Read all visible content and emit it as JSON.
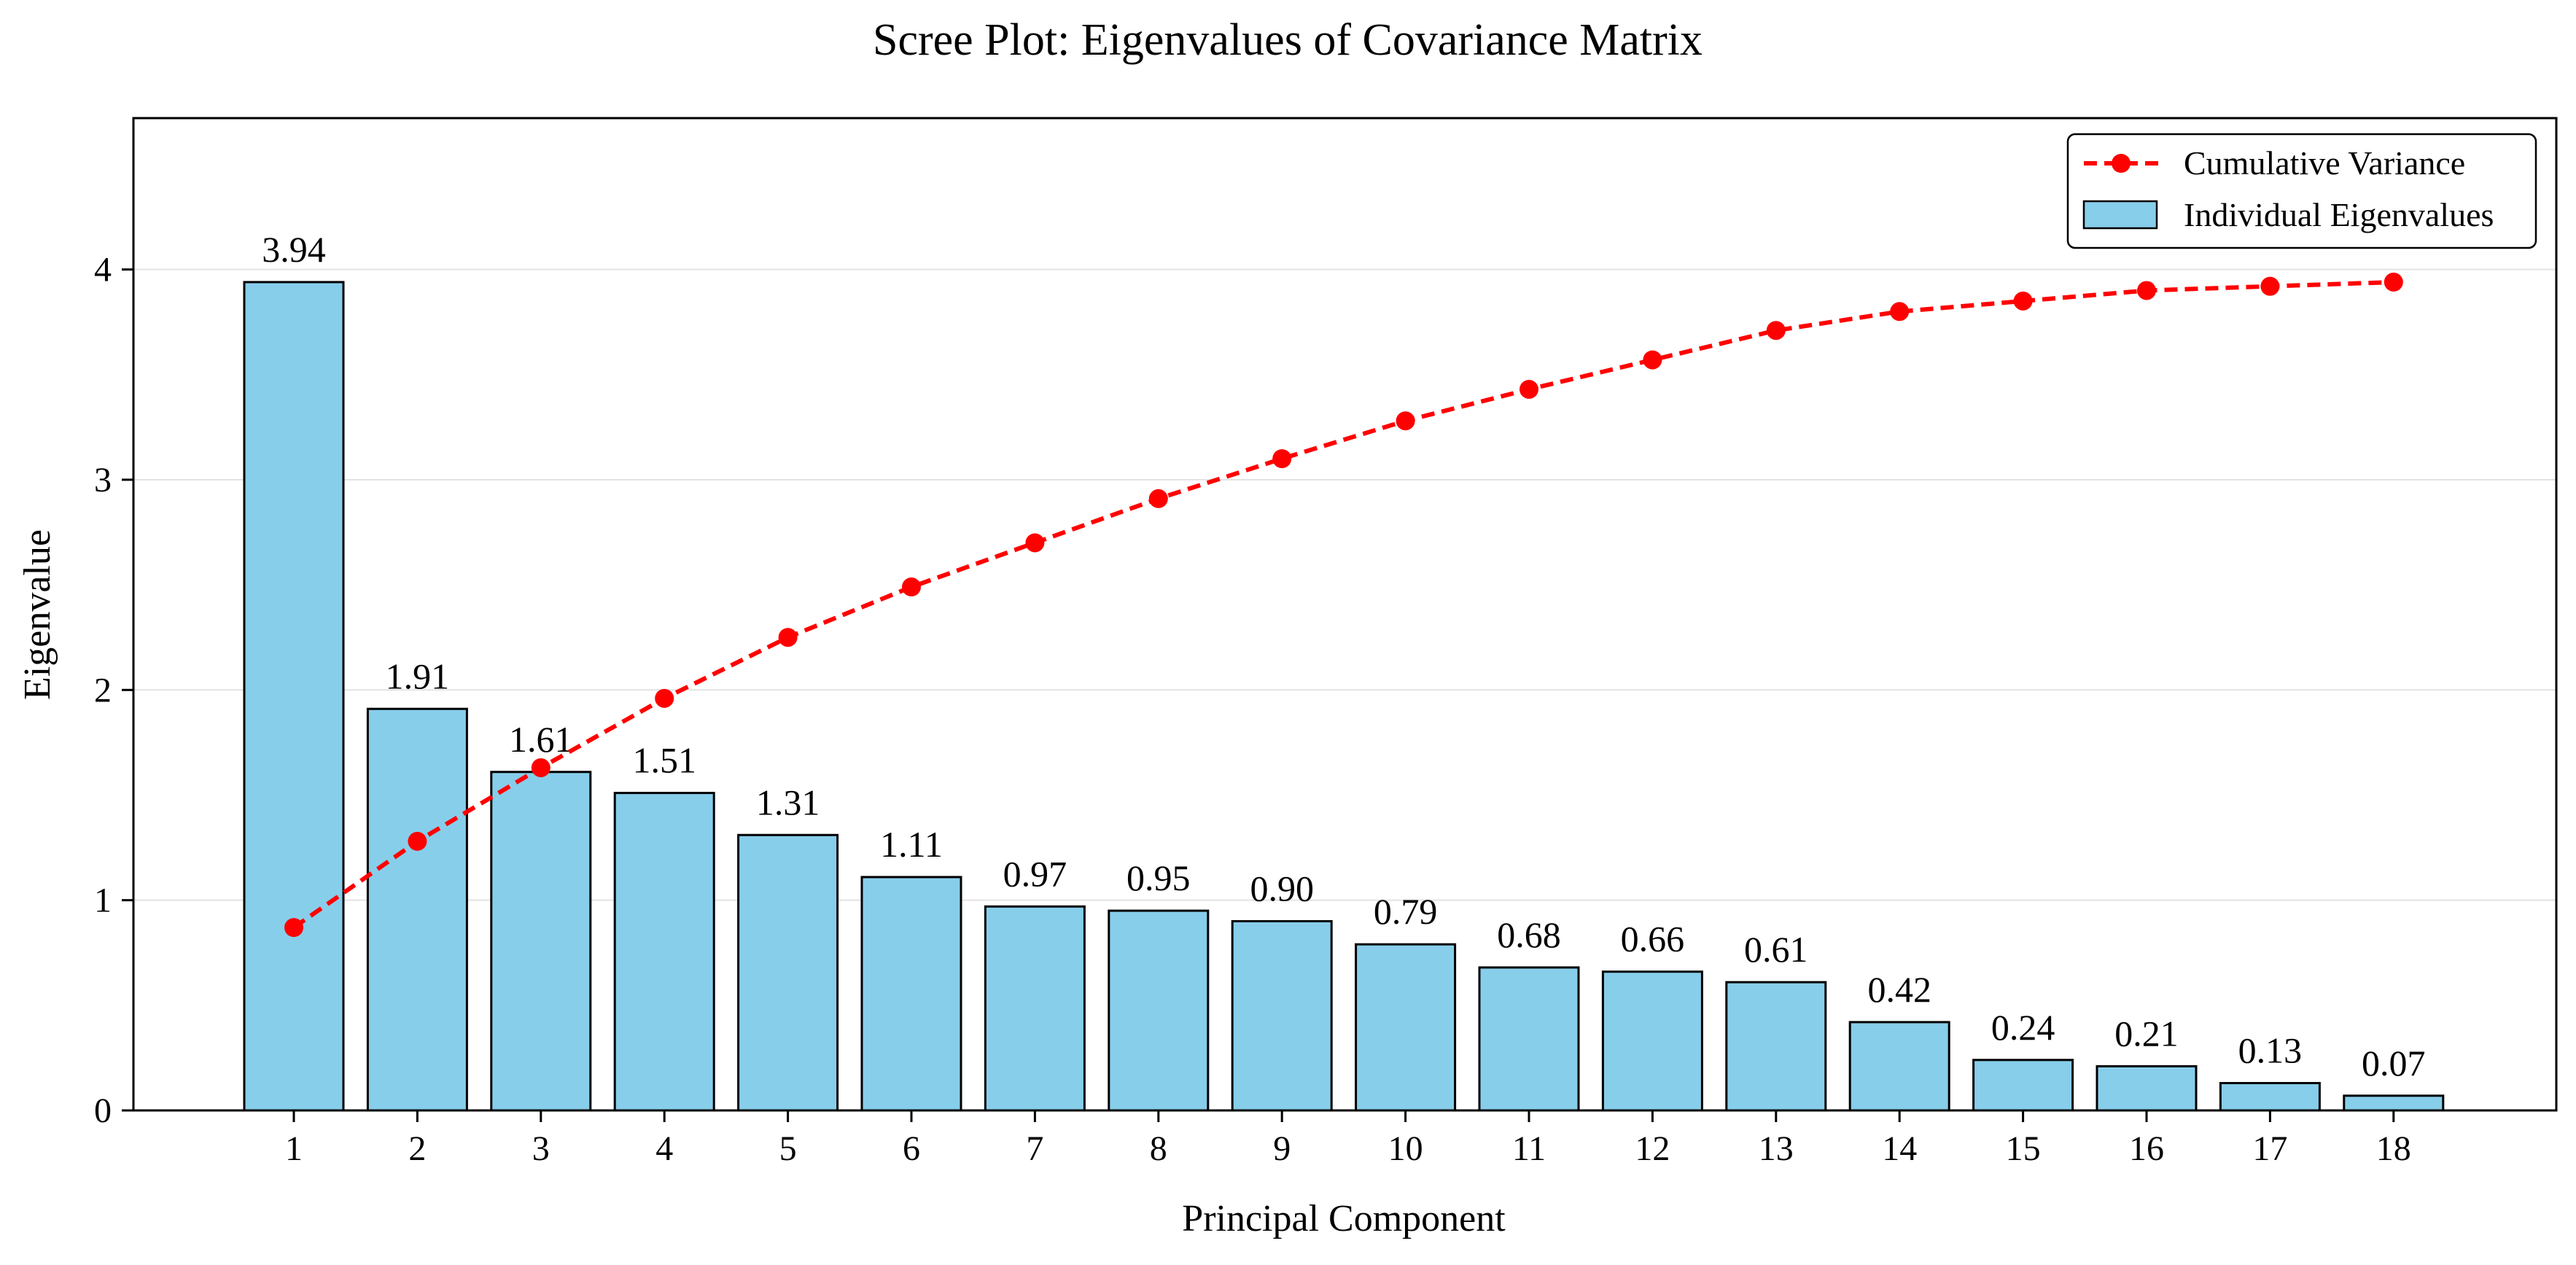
{
  "chart_data": {
    "type": "bar",
    "title": "Scree Plot: Eigenvalues of Covariance Matrix",
    "xlabel": "Principal Component",
    "ylabel": "Eigenvalue",
    "categories": [
      "1",
      "2",
      "3",
      "4",
      "5",
      "6",
      "7",
      "8",
      "9",
      "10",
      "11",
      "12",
      "13",
      "14",
      "15",
      "16",
      "17",
      "18"
    ],
    "series": [
      {
        "name": "Individual Eigenvalues",
        "type": "bar",
        "color": "#87ceeb",
        "edgecolor": "#000000",
        "values": [
          3.94,
          1.91,
          1.61,
          1.51,
          1.31,
          1.11,
          0.97,
          0.95,
          0.9,
          0.79,
          0.68,
          0.66,
          0.61,
          0.42,
          0.24,
          0.21,
          0.13,
          0.07
        ],
        "data_labels": [
          "3.94",
          "1.91",
          "1.61",
          "1.51",
          "1.31",
          "1.11",
          "0.97",
          "0.95",
          "0.90",
          "0.79",
          "0.68",
          "0.66",
          "0.61",
          "0.42",
          "0.24",
          "0.21",
          "0.13",
          "0.07"
        ]
      },
      {
        "name": "Cumulative Variance",
        "type": "line",
        "color": "#ff0000",
        "linestyle": "dashed",
        "marker": "circle",
        "values": [
          0.87,
          1.28,
          1.63,
          1.96,
          2.25,
          2.49,
          2.7,
          2.91,
          3.1,
          3.28,
          3.43,
          3.57,
          3.71,
          3.8,
          3.85,
          3.9,
          3.92,
          3.94
        ]
      }
    ],
    "ylim": [
      0,
      4.72
    ],
    "yticks": [
      "0",
      "1",
      "2",
      "3",
      "4"
    ],
    "grid": "y-axis, light",
    "legend_position": "top-right"
  }
}
